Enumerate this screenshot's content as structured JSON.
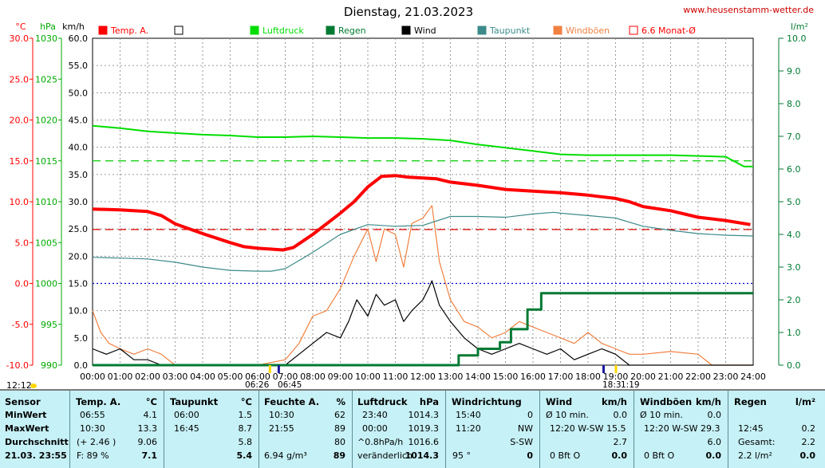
{
  "title": "Dienstag, 21.03.2023",
  "site": "www.heusenstamm-wetter.de",
  "axes": {
    "temp_unit": "°C",
    "press_unit": "hPa",
    "speed_unit": "km/h",
    "rain_unit": "l/m²",
    "temp_ticks": [
      "30.0",
      "25.0",
      "20.0",
      "15.0",
      "10.0",
      "5.0",
      "0.0",
      "-5.0",
      "-10.0"
    ],
    "press_ticks": [
      "1030",
      "1025",
      "1020",
      "1015",
      "1010",
      "1005",
      "1000",
      "995",
      "990"
    ],
    "speed_ticks": [
      "60.0",
      "55.0",
      "50.0",
      "45.0",
      "40.0",
      "35.0",
      "30.0",
      "25.0",
      "20.0",
      "15.0",
      "10.0",
      "5.0",
      "0.0"
    ],
    "rain_ticks": [
      "10.0",
      "9.0",
      "8.0",
      "7.0",
      "6.0",
      "5.0",
      "4.0",
      "3.0",
      "2.0",
      "1.0",
      "0.0"
    ],
    "time_ticks": [
      "00:00",
      "01:00",
      "02:00",
      "03:00",
      "04:00",
      "05:00",
      "06:00",
      "07:00",
      "08:00",
      "09:00",
      "10:00",
      "11:00",
      "12:00",
      "13:00",
      "14:00",
      "15:00",
      "16:00",
      "17:00",
      "18:00",
      "19:00",
      "20:00",
      "21:00",
      "22:00",
      "23:00",
      "24:00"
    ]
  },
  "sun": {
    "rise": "06:26",
    "rise_b": "06:45",
    "noon": "12:12",
    "set": "18:3",
    "set_b": "1:19"
  },
  "legend": [
    {
      "label": "Temp. A.",
      "color": "#ff0000",
      "filled": true
    },
    {
      "label": "",
      "color": "#000000",
      "filled": false
    },
    {
      "label": "Luftdruck",
      "color": "#00dd00",
      "filled": true
    },
    {
      "label": "Regen",
      "color": "#007a33",
      "filled": true
    },
    {
      "label": "Wind",
      "color": "#000000",
      "filled": true
    },
    {
      "label": "Taupunkt",
      "color": "#3d8a8a",
      "filled": true
    },
    {
      "label": "Windböen",
      "color": "#f08040",
      "filled": true
    },
    {
      "label": "6.6 Monat-Ø",
      "color": "#ff0000",
      "filled": false
    }
  ],
  "chart_data": {
    "type": "line",
    "title": "Dienstag, 21.03.2023",
    "x_unit": "hours",
    "x_range": [
      0,
      24
    ],
    "reference_lines": [
      {
        "name": "6.6 Monat-Ø",
        "axis": "temp",
        "value": 6.6
      },
      {
        "axis": "press",
        "value": 1015
      },
      {
        "axis": "temp",
        "value": 0.0
      }
    ],
    "series": [
      {
        "name": "Temp. A.",
        "axis": "temp",
        "color": "#ff0000",
        "points": [
          [
            0,
            9.1
          ],
          [
            1,
            9.0
          ],
          [
            2,
            8.8
          ],
          [
            2.5,
            8.3
          ],
          [
            3,
            7.3
          ],
          [
            4,
            6.1
          ],
          [
            5,
            5.0
          ],
          [
            5.5,
            4.5
          ],
          [
            6,
            4.3
          ],
          [
            6.5,
            4.2
          ],
          [
            6.92,
            4.1
          ],
          [
            7.3,
            4.4
          ],
          [
            8,
            6.0
          ],
          [
            9,
            8.6
          ],
          [
            9.5,
            10.0
          ],
          [
            10,
            11.8
          ],
          [
            10.5,
            13.1
          ],
          [
            11,
            13.2
          ],
          [
            11.5,
            13.0
          ],
          [
            12,
            12.9
          ],
          [
            12.5,
            12.8
          ],
          [
            13,
            12.4
          ],
          [
            14,
            12.0
          ],
          [
            15,
            11.5
          ],
          [
            16,
            11.3
          ],
          [
            17,
            11.1
          ],
          [
            18,
            10.8
          ],
          [
            19,
            10.4
          ],
          [
            19.5,
            10.0
          ],
          [
            20,
            9.4
          ],
          [
            21,
            8.9
          ],
          [
            22,
            8.1
          ],
          [
            23,
            7.7
          ],
          [
            23.9,
            7.2
          ]
        ]
      },
      {
        "name": "Luftdruck",
        "axis": "press",
        "color": "#00dd00",
        "points": [
          [
            0,
            1019.3
          ],
          [
            1,
            1019.0
          ],
          [
            2,
            1018.6
          ],
          [
            3,
            1018.4
          ],
          [
            4,
            1018.2
          ],
          [
            5,
            1018.1
          ],
          [
            6,
            1017.9
          ],
          [
            7,
            1017.9
          ],
          [
            8,
            1018.0
          ],
          [
            9,
            1017.9
          ],
          [
            10,
            1017.8
          ],
          [
            11,
            1017.8
          ],
          [
            12,
            1017.7
          ],
          [
            13,
            1017.5
          ],
          [
            14,
            1017.0
          ],
          [
            15,
            1016.6
          ],
          [
            16,
            1016.2
          ],
          [
            17,
            1015.8
          ],
          [
            18,
            1015.7
          ],
          [
            19,
            1015.7
          ],
          [
            20,
            1015.7
          ],
          [
            21,
            1015.7
          ],
          [
            22,
            1015.6
          ],
          [
            23,
            1015.5
          ],
          [
            23.67,
            1014.3
          ],
          [
            24,
            1014.3
          ]
        ]
      },
      {
        "name": "Taupunkt",
        "axis": "temp",
        "color": "#3d8a8a",
        "points": [
          [
            0,
            3.2
          ],
          [
            1,
            3.1
          ],
          [
            2,
            3.0
          ],
          [
            3,
            2.6
          ],
          [
            4,
            2.0
          ],
          [
            5,
            1.6
          ],
          [
            6,
            1.5
          ],
          [
            6.5,
            1.5
          ],
          [
            7,
            1.8
          ],
          [
            8,
            3.8
          ],
          [
            9,
            6.0
          ],
          [
            10,
            7.2
          ],
          [
            11,
            7.0
          ],
          [
            12,
            7.1
          ],
          [
            13,
            8.2
          ],
          [
            14,
            8.2
          ],
          [
            15,
            8.1
          ],
          [
            16,
            8.5
          ],
          [
            16.75,
            8.7
          ],
          [
            17,
            8.6
          ],
          [
            18,
            8.3
          ],
          [
            19,
            8.0
          ],
          [
            20,
            7.0
          ],
          [
            21,
            6.5
          ],
          [
            22,
            6.1
          ],
          [
            23,
            5.9
          ],
          [
            24,
            5.8
          ]
        ]
      },
      {
        "name": "Wind",
        "axis": "speed",
        "color": "#000000",
        "points": [
          [
            0,
            3
          ],
          [
            0.5,
            2
          ],
          [
            1,
            3
          ],
          [
            1.5,
            1
          ],
          [
            2,
            1
          ],
          [
            2.5,
            0
          ],
          [
            3,
            0
          ],
          [
            6,
            0
          ],
          [
            7,
            0
          ],
          [
            7.5,
            2
          ],
          [
            8,
            4
          ],
          [
            8.5,
            6
          ],
          [
            9,
            5
          ],
          [
            9.3,
            8
          ],
          [
            9.6,
            12
          ],
          [
            10,
            9
          ],
          [
            10.3,
            13
          ],
          [
            10.6,
            11
          ],
          [
            11,
            12
          ],
          [
            11.3,
            8
          ],
          [
            11.6,
            10
          ],
          [
            12,
            12
          ],
          [
            12.2,
            14
          ],
          [
            12.33,
            15.5
          ],
          [
            12.6,
            11
          ],
          [
            13,
            8
          ],
          [
            13.5,
            5
          ],
          [
            14,
            3
          ],
          [
            14.5,
            2
          ],
          [
            15,
            3
          ],
          [
            15.5,
            4
          ],
          [
            16,
            3
          ],
          [
            16.5,
            2
          ],
          [
            17,
            3
          ],
          [
            17.5,
            1
          ],
          [
            18,
            2
          ],
          [
            18.5,
            3
          ],
          [
            19,
            2
          ],
          [
            19.5,
            0
          ],
          [
            20,
            0
          ],
          [
            21,
            0
          ],
          [
            22,
            0
          ],
          [
            24,
            0
          ]
        ]
      },
      {
        "name": "Windböen",
        "axis": "speed",
        "color": "#f08040",
        "points": [
          [
            0,
            10
          ],
          [
            0.3,
            6
          ],
          [
            0.6,
            4
          ],
          [
            1,
            3
          ],
          [
            1.5,
            2
          ],
          [
            2,
            3
          ],
          [
            2.5,
            2
          ],
          [
            3,
            0
          ],
          [
            6,
            0
          ],
          [
            7,
            1
          ],
          [
            7.5,
            4
          ],
          [
            8,
            9
          ],
          [
            8.5,
            10
          ],
          [
            9,
            14
          ],
          [
            9.5,
            20
          ],
          [
            10,
            25
          ],
          [
            10.3,
            19
          ],
          [
            10.6,
            25
          ],
          [
            11,
            24
          ],
          [
            11.3,
            18
          ],
          [
            11.6,
            26
          ],
          [
            12,
            27
          ],
          [
            12.33,
            29.3
          ],
          [
            12.6,
            19
          ],
          [
            13,
            12
          ],
          [
            13.5,
            8
          ],
          [
            14,
            7
          ],
          [
            14.5,
            5
          ],
          [
            15,
            6
          ],
          [
            15.5,
            8
          ],
          [
            16,
            7
          ],
          [
            16.5,
            6
          ],
          [
            17,
            5
          ],
          [
            17.5,
            4
          ],
          [
            18,
            6
          ],
          [
            18.5,
            4
          ],
          [
            19,
            3
          ],
          [
            19.5,
            2
          ],
          [
            20,
            2
          ],
          [
            21,
            2.5
          ],
          [
            22,
            2
          ],
          [
            22.5,
            0
          ],
          [
            24,
            0
          ]
        ]
      },
      {
        "name": "Regen",
        "axis": "rain",
        "color": "#007a33",
        "points": [
          [
            0,
            0
          ],
          [
            12.5,
            0
          ],
          [
            13.3,
            0.3
          ],
          [
            14,
            0.5
          ],
          [
            14.8,
            0.7
          ],
          [
            15.2,
            1.1
          ],
          [
            15.8,
            1.7
          ],
          [
            16.3,
            2.2
          ],
          [
            24,
            2.2
          ]
        ]
      }
    ]
  },
  "stats": {
    "sensor": {
      "header": "Sensor",
      "rows": [
        "MinWert",
        "MaxWert",
        "Durchschnitt",
        "21.03.  23:55"
      ]
    },
    "temp": {
      "header": "Temp. A.",
      "unit": "°C",
      "rows": [
        [
          "06:55",
          "4.1"
        ],
        [
          "10:30",
          "13.3"
        ],
        [
          "(+ 2.46 )",
          "9.06"
        ],
        [
          "F: 89 %",
          "7.1"
        ]
      ]
    },
    "dew": {
      "header": "Taupunkt",
      "unit": "°C",
      "rows": [
        [
          "06:00",
          "1.5"
        ],
        [
          "16:45",
          "8.7"
        ],
        [
          "",
          "5.8"
        ],
        [
          "",
          "5.4"
        ]
      ]
    },
    "hum": {
      "header": "Feuchte A.",
      "unit": "%",
      "rows": [
        [
          "10:30",
          "62"
        ],
        [
          "21:55",
          "89"
        ],
        [
          "",
          "80"
        ],
        [
          "6.94 g/m³",
          "89"
        ]
      ]
    },
    "press": {
      "header": "Luftdruck",
      "unit": "hPa",
      "rows": [
        [
          "23:40",
          "1014.3"
        ],
        [
          "00:00",
          "1019.3"
        ],
        [
          "^0.8hPa/h",
          "1016.6"
        ],
        [
          "veränderlich",
          "1014.3"
        ]
      ]
    },
    "dir": {
      "header": "Windrichtung",
      "rows": [
        [
          "15:40",
          "0"
        ],
        [
          "11:20",
          "NW"
        ],
        [
          "",
          "S-SW"
        ],
        [
          "95 °",
          "0"
        ]
      ]
    },
    "wind": {
      "header": "Wind",
      "unit": "km/h",
      "rows": [
        [
          "Ø 10 min.",
          "0.0"
        ],
        [
          "12:20    W-SW 15.5",
          ""
        ],
        [
          "",
          "2.7"
        ],
        [
          "0 Bft O",
          "0.0"
        ]
      ]
    },
    "gust": {
      "header": "Windböen",
      "unit": "km/h",
      "rows": [
        [
          "Ø 10 min.",
          "0.0"
        ],
        [
          "12:20    W-SW 29.3",
          ""
        ],
        [
          "",
          "6.0"
        ],
        [
          "0 Bft O",
          "0.0"
        ]
      ]
    },
    "rain": {
      "header": "Regen",
      "unit": "l/m²",
      "rows": [
        [
          "",
          "",
          ""
        ],
        [
          "12:45",
          "0.2"
        ],
        [
          "Gesamt:",
          "2.2"
        ],
        [
          "2.2 l/m²",
          "0.0"
        ]
      ]
    }
  }
}
